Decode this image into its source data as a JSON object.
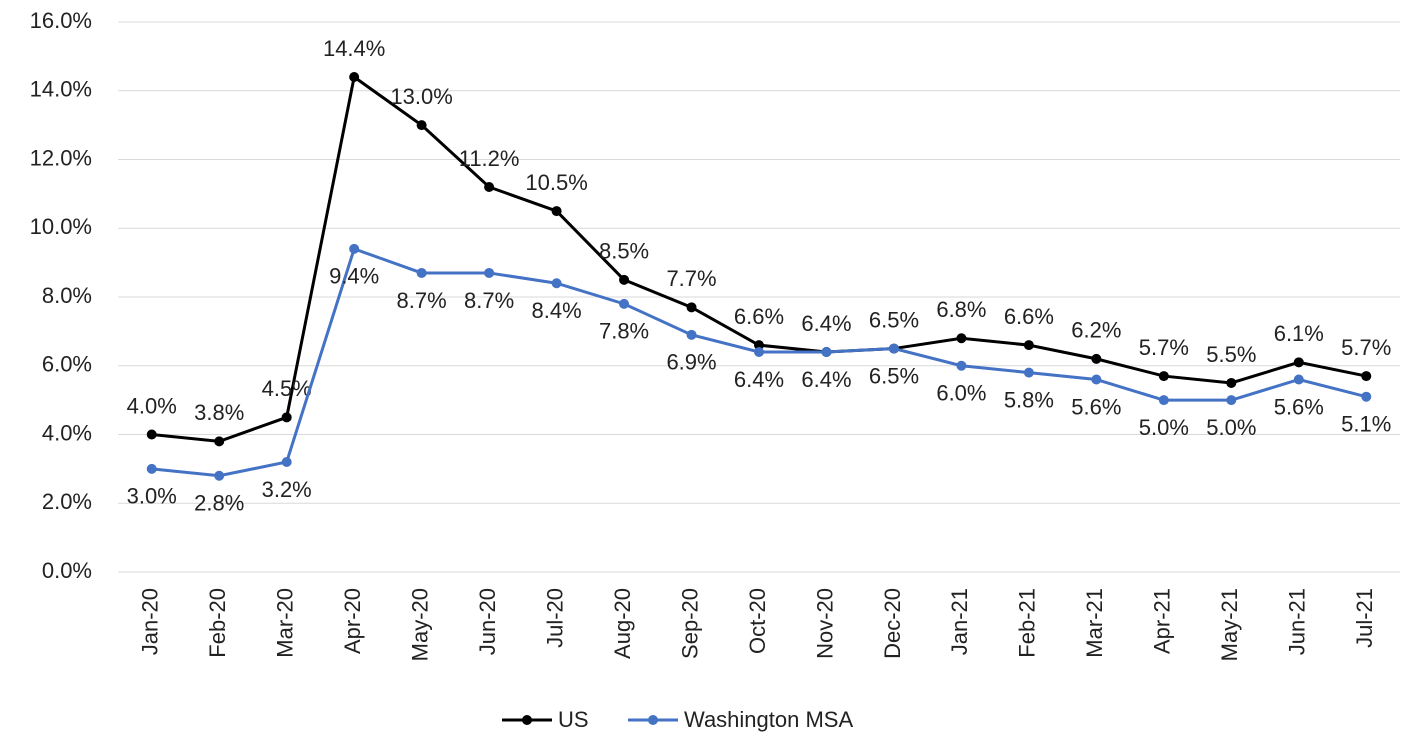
{
  "chart_data": {
    "type": "line",
    "categories": [
      "Jan-20",
      "Feb-20",
      "Mar-20",
      "Apr-20",
      "May-20",
      "Jun-20",
      "Jul-20",
      "Aug-20",
      "Sep-20",
      "Oct-20",
      "Nov-20",
      "Dec-20",
      "Jan-21",
      "Feb-21",
      "Mar-21",
      "Apr-21",
      "May-21",
      "Jun-21",
      "Jul-21"
    ],
    "series": [
      {
        "name": "US",
        "color": "#000000",
        "values": [
          4.0,
          3.8,
          4.5,
          14.4,
          13.0,
          11.2,
          10.5,
          8.5,
          7.7,
          6.6,
          6.4,
          6.5,
          6.8,
          6.6,
          6.2,
          5.7,
          5.5,
          6.1,
          5.7
        ],
        "value_labels": [
          "4.0%",
          "3.8%",
          "4.5%",
          "14.4%",
          "13.0%",
          "11.2%",
          "10.5%",
          "8.5%",
          "7.7%",
          "6.6%",
          "6.4%",
          "6.5%",
          "6.8%",
          "6.6%",
          "6.2%",
          "5.7%",
          "5.5%",
          "6.1%",
          "5.7%"
        ]
      },
      {
        "name": "Washington MSA",
        "color": "#4472c4",
        "values": [
          3.0,
          2.8,
          3.2,
          9.4,
          8.7,
          8.7,
          8.4,
          7.8,
          6.9,
          6.4,
          6.4,
          6.5,
          6.0,
          5.8,
          5.6,
          5.0,
          5.0,
          5.6,
          5.1
        ],
        "value_labels": [
          "3.0%",
          "2.8%",
          "3.2%",
          "9.4%",
          "8.7%",
          "8.7%",
          "8.4%",
          "7.8%",
          "6.9%",
          "6.4%",
          "6.4%",
          "6.5%",
          "6.0%",
          "5.8%",
          "5.6%",
          "5.0%",
          "5.0%",
          "5.6%",
          "5.1%"
        ]
      }
    ],
    "ylim": [
      0,
      16
    ],
    "yticks": [
      {
        "value": 0,
        "label": "0.0%"
      },
      {
        "value": 2,
        "label": "2.0%"
      },
      {
        "value": 4,
        "label": "4.0%"
      },
      {
        "value": 6,
        "label": "6.0%"
      },
      {
        "value": 8,
        "label": "8.0%"
      },
      {
        "value": 10,
        "label": "10.0%"
      },
      {
        "value": 12,
        "label": "12.0%"
      },
      {
        "value": 14,
        "label": "14.0%"
      },
      {
        "value": 16,
        "label": "16.0%"
      }
    ],
    "grid": true,
    "legend": "bottom"
  }
}
